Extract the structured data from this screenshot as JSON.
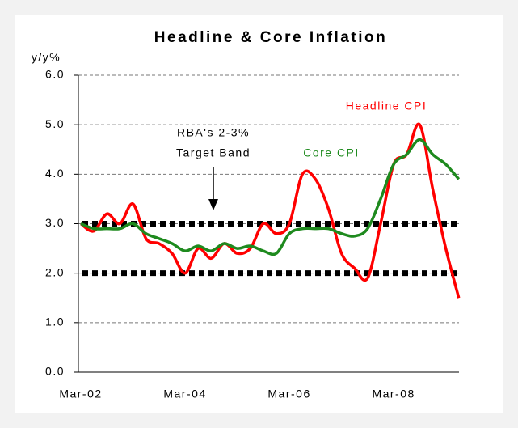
{
  "chart_data": {
    "type": "line",
    "title": "Headline & Core Inflation",
    "y_label": "y/y%",
    "annotations": [
      "RBA's 2-3%",
      "Target Band"
    ],
    "categories": [
      "Mar-02",
      null,
      null,
      null,
      null,
      null,
      null,
      null,
      "Mar-04",
      null,
      null,
      null,
      null,
      null,
      null,
      null,
      "Mar-06",
      null,
      null,
      null,
      null,
      null,
      null,
      null,
      "Mar-08",
      null,
      null,
      null,
      null,
      null
    ],
    "series": [
      {
        "name": "Headline CPI",
        "color": "#ff0000",
        "values": [
          3.0,
          2.85,
          3.2,
          3.0,
          3.4,
          2.7,
          2.6,
          2.4,
          2.0,
          2.5,
          2.3,
          2.6,
          2.4,
          2.5,
          3.0,
          2.8,
          3.0,
          4.0,
          3.9,
          3.3,
          2.4,
          2.1,
          1.9,
          3.0,
          4.2,
          4.4,
          5.0,
          3.7,
          2.5,
          1.5
        ]
      },
      {
        "name": "Core CPI",
        "color": "#1e8a1e",
        "values": [
          3.0,
          2.9,
          2.9,
          2.9,
          3.0,
          2.8,
          2.7,
          2.6,
          2.45,
          2.55,
          2.45,
          2.6,
          2.5,
          2.55,
          2.45,
          2.4,
          2.8,
          2.9,
          2.9,
          2.9,
          2.8,
          2.75,
          2.9,
          3.5,
          4.2,
          4.4,
          4.7,
          4.4,
          4.2,
          3.9
        ]
      }
    ],
    "band": [
      2,
      3
    ],
    "ylim": [
      0,
      6
    ],
    "yticks": [
      {
        "value": 0,
        "label": "0.0"
      },
      {
        "value": 1,
        "label": "1.0"
      },
      {
        "value": 2,
        "label": "2.0"
      },
      {
        "value": 3,
        "label": "3.0"
      },
      {
        "value": 4,
        "label": "4.0"
      },
      {
        "value": 5,
        "label": "5.0"
      },
      {
        "value": 6,
        "label": "6.0"
      }
    ],
    "grid": true
  }
}
